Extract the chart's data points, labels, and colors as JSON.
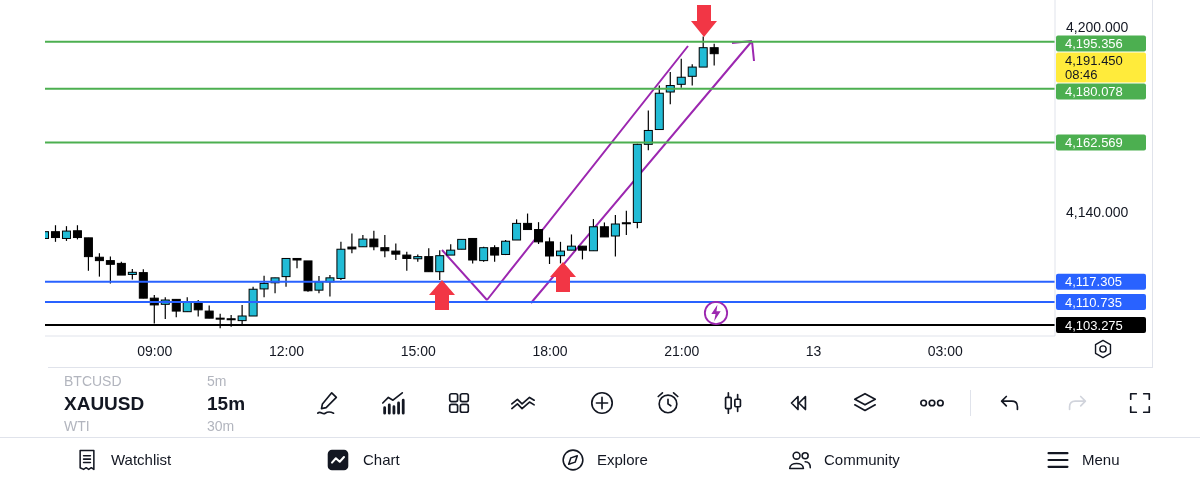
{
  "chart_data": {
    "type": "candlestick",
    "categories": [
      null,
      null,
      null,
      null,
      null,
      null,
      null,
      null,
      null,
      null,
      "09:00",
      null,
      null,
      null,
      null,
      null,
      null,
      null,
      null,
      null,
      null,
      null,
      "12:00",
      null,
      null,
      null,
      null,
      null,
      null,
      null,
      null,
      null,
      null,
      null,
      "15:00",
      null,
      null,
      null,
      null,
      null,
      null,
      null,
      null,
      null,
      null,
      null,
      "18:00",
      null,
      null,
      null,
      null,
      null,
      null,
      null,
      null,
      null,
      null,
      null,
      "21:00",
      null,
      null,
      null,
      null,
      null,
      null,
      null,
      null,
      null,
      null,
      null,
      "13",
      null,
      null,
      null,
      null,
      null,
      null,
      null,
      null,
      null,
      null,
      null,
      "03:00",
      null,
      null,
      null,
      null,
      null,
      null,
      null,
      null,
      null,
      null
    ],
    "ohlc": [
      [
        4131.4,
        4133.6,
        4131.4,
        4133.6
      ],
      [
        4133.6,
        4135.7,
        4130.3,
        4131.7
      ],
      [
        4131.4,
        4135.4,
        4130.6,
        4133.8
      ],
      [
        4133.9,
        4135.7,
        4131.1,
        4131.7
      ],
      [
        4131.6,
        4131.6,
        4120.9,
        4125.5
      ],
      [
        4125.3,
        4126.6,
        4119.0,
        4124.2
      ],
      [
        4124.2,
        4125.5,
        4116.8,
        4123.0
      ],
      [
        4123.3,
        4123.8,
        4119.5,
        4119.5
      ],
      [
        4119.7,
        4121.5,
        4118.1,
        4120.4
      ],
      [
        4120.3,
        4121.4,
        4112.0,
        4112.0
      ],
      [
        4112.0,
        4113.0,
        4103.8,
        4109.8
      ],
      [
        4110.0,
        4112.3,
        4105.2,
        4111.4
      ],
      [
        4111.6,
        4111.6,
        4105.8,
        4107.8
      ],
      [
        4107.6,
        4112.3,
        4107.6,
        4110.7
      ],
      [
        4110.9,
        4111.4,
        4106.0,
        4108.2
      ],
      [
        4107.8,
        4109.6,
        4105.5,
        4105.5
      ],
      [
        4105.5,
        4106.9,
        4102.2,
        4105.2
      ],
      [
        4105.3,
        4106.5,
        4102.7,
        4105.1
      ],
      [
        4104.7,
        4109.8,
        4103.3,
        4106.2
      ],
      [
        4106.2,
        4115.7,
        4106.2,
        4114.9
      ],
      [
        4115.0,
        4119.3,
        4112.3,
        4116.8
      ],
      [
        4117.0,
        4118.6,
        4113.6,
        4118.6
      ],
      [
        4119.0,
        4124.9,
        4115.7,
        4124.9
      ],
      [
        4124.9,
        4124.9,
        4121.7,
        4124.4
      ],
      [
        4124.1,
        4124.1,
        4114.1,
        4114.4
      ],
      [
        4114.6,
        4119.2,
        4113.6,
        4117.3
      ],
      [
        4117.3,
        4119.5,
        4112.5,
        4118.6
      ],
      [
        4118.4,
        4130.3,
        4117.9,
        4127.9
      ],
      [
        4128.6,
        4133.0,
        4126.6,
        4128.0
      ],
      [
        4128.7,
        4132.5,
        4128.7,
        4131.2
      ],
      [
        4131.2,
        4133.9,
        4127.6,
        4128.7
      ],
      [
        4128.4,
        4132.5,
        4125.3,
        4127.4
      ],
      [
        4127.3,
        4129.8,
        4124.4,
        4126.3
      ],
      [
        4126.0,
        4127.1,
        4120.9,
        4124.9
      ],
      [
        4124.8,
        4126.2,
        4123.8,
        4125.5
      ],
      [
        4125.5,
        4128.2,
        4120.6,
        4120.6
      ],
      [
        4120.6,
        4127.6,
        4117.9,
        4125.8
      ],
      [
        4126.0,
        4129.5,
        4126.0,
        4127.6
      ],
      [
        4127.9,
        4131.1,
        4127.9,
        4131.1
      ],
      [
        4131.4,
        4131.4,
        4123.3,
        4124.4
      ],
      [
        4124.2,
        4128.7,
        4123.8,
        4128.4
      ],
      [
        4128.4,
        4129.2,
        4123.8,
        4126.0
      ],
      [
        4126.2,
        4130.9,
        4126.0,
        4130.5
      ],
      [
        4130.9,
        4137.6,
        4130.9,
        4136.3
      ],
      [
        4136.3,
        4139.5,
        4134.3,
        4134.3
      ],
      [
        4134.3,
        4136.7,
        4129.6,
        4130.3
      ],
      [
        4130.3,
        4131.7,
        4123.1,
        4125.7
      ],
      [
        4125.8,
        4130.3,
        4123.3,
        4127.3
      ],
      [
        4127.6,
        4132.7,
        4127.6,
        4128.9
      ],
      [
        4128.9,
        4128.9,
        4124.6,
        4127.6
      ],
      [
        4127.4,
        4137.7,
        4127.4,
        4135.2
      ],
      [
        4135.2,
        4136.6,
        4131.9,
        4131.9
      ],
      [
        4132.2,
        4139.0,
        4125.5,
        4136.1
      ],
      [
        4136.5,
        4140.4,
        4132.5,
        4136.3
      ],
      [
        4136.6,
        4162.2,
        4134.7,
        4162.0
      ],
      [
        4162.0,
        4173.0,
        4160.1,
        4166.5
      ],
      [
        4166.8,
        4181.1,
        4166.8,
        4178.6
      ],
      [
        4179.0,
        4185.5,
        4175.0,
        4181.1
      ],
      [
        4181.5,
        4189.8,
        4180.4,
        4183.8
      ],
      [
        4184.1,
        4188.0,
        4181.1,
        4187.1
      ],
      [
        4187.1,
        4197.0,
        4187.1,
        4193.4
      ],
      [
        4193.4,
        4194.7,
        4187.6,
        4191.45
      ],
      null,
      null,
      null,
      null,
      null,
      null,
      null,
      null,
      null,
      null,
      null,
      null,
      null,
      null,
      null,
      null,
      null,
      null,
      null,
      null,
      null,
      null,
      null,
      null,
      null,
      null,
      null,
      null,
      null,
      null,
      null
    ],
    "colors": [
      "#22bcd6",
      "#000000",
      "#22bcd6",
      "#000000",
      "#000000",
      "#000000",
      "#000000",
      "#000000",
      "#22bcd6",
      "#000000",
      "#000000",
      "#22bcd6",
      "#000000",
      "#22bcd6",
      "#000000",
      "#000000",
      "#000000",
      "#000000",
      "#22bcd6",
      "#22bcd6",
      "#22bcd6",
      "#22bcd6",
      "#22bcd6",
      "#000000",
      "#000000",
      "#22bcd6",
      "#22bcd6",
      "#22bcd6",
      "#000000",
      "#22bcd6",
      "#000000",
      "#000000",
      "#000000",
      "#000000",
      "#22bcd6",
      "#000000",
      "#22bcd6",
      "#22bcd6",
      "#22bcd6",
      "#000000",
      "#22bcd6",
      "#000000",
      "#22bcd6",
      "#22bcd6",
      "#000000",
      "#000000",
      "#000000",
      "#22bcd6",
      "#22bcd6",
      "#000000",
      "#22bcd6",
      "#000000",
      "#22bcd6",
      "#000000",
      "#22bcd6",
      "#22bcd6",
      "#22bcd6",
      "#22bcd6",
      "#22bcd6",
      "#22bcd6",
      "#22bcd6",
      "#000000",
      null,
      null,
      null,
      null,
      null,
      null,
      null,
      null,
      null,
      null,
      null,
      null,
      null,
      null,
      null,
      null,
      null,
      null,
      null,
      null,
      null,
      null,
      null,
      null,
      null,
      null,
      null,
      null,
      null,
      null,
      null
    ],
    "ylim": [
      4099.7,
      4208.9
    ],
    "yticks": [
      {
        "value": 4140,
        "label": "4,140.000"
      },
      {
        "value": 4200,
        "label": "4,200.000"
      }
    ],
    "ref_lines": [
      {
        "axis": "y",
        "value": 4195.356,
        "label": "4,195.356",
        "color": "#4caf50"
      },
      {
        "axis": "y",
        "value": 4180.078,
        "label": "4,180.078",
        "color": "#4caf50"
      },
      {
        "axis": "y",
        "value": 4162.569,
        "label": "4,162.569",
        "color": "#4caf50"
      },
      {
        "axis": "y",
        "value": 4117.305,
        "label": "4,117.305",
        "color": "#2962ff"
      },
      {
        "axis": "y",
        "value": 4110.735,
        "label": "4,110.735",
        "color": "#2962ff"
      },
      {
        "axis": "y",
        "value": 4103.275,
        "label": "4,103.275",
        "color": "#000000"
      }
    ],
    "annotations": [
      "4,191.450\n08:46",
      "BTCUSD",
      "5m",
      "XAUUSD",
      "15m",
      "WTI",
      "30m",
      "Watchlist",
      "Chart",
      "Explore",
      "Community",
      "Menu"
    ]
  }
}
